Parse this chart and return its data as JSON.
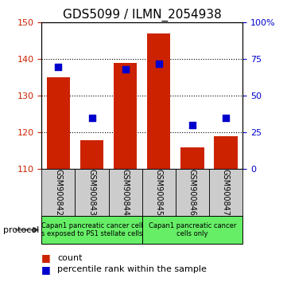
{
  "title": "GDS5099 / ILMN_2054938",
  "samples": [
    "GSM900842",
    "GSM900843",
    "GSM900844",
    "GSM900845",
    "GSM900846",
    "GSM900847"
  ],
  "bar_bottoms": [
    110,
    110,
    110,
    110,
    110,
    110
  ],
  "bar_tops": [
    135,
    118,
    139,
    147,
    116,
    119
  ],
  "percentile_ranks": [
    70,
    35,
    68,
    72,
    30,
    35
  ],
  "ylim_left": [
    110,
    150
  ],
  "ylim_right": [
    0,
    100
  ],
  "yticks_left": [
    110,
    120,
    130,
    140,
    150
  ],
  "yticks_right": [
    0,
    25,
    50,
    75,
    100
  ],
  "ytick_right_labels": [
    "0",
    "25",
    "50",
    "75",
    "100%"
  ],
  "bar_color": "#cc2200",
  "dot_color": "#0000cc",
  "group1_label": "Capan1 pancreatic cancer cell\ns exposed to PS1 stellate cells",
  "group2_label": "Capan1 pancreatic cancer\ncells only",
  "group_bg_color": "#66ee66",
  "sample_bg_color": "#cccccc",
  "protocol_label": "protocol",
  "legend_count_label": "count",
  "legend_pct_label": "percentile rank within the sample",
  "bar_width": 0.7,
  "dot_size": 30,
  "title_fontsize": 11,
  "axis_color_left": "#cc2200",
  "axis_color_right": "#0000cc"
}
